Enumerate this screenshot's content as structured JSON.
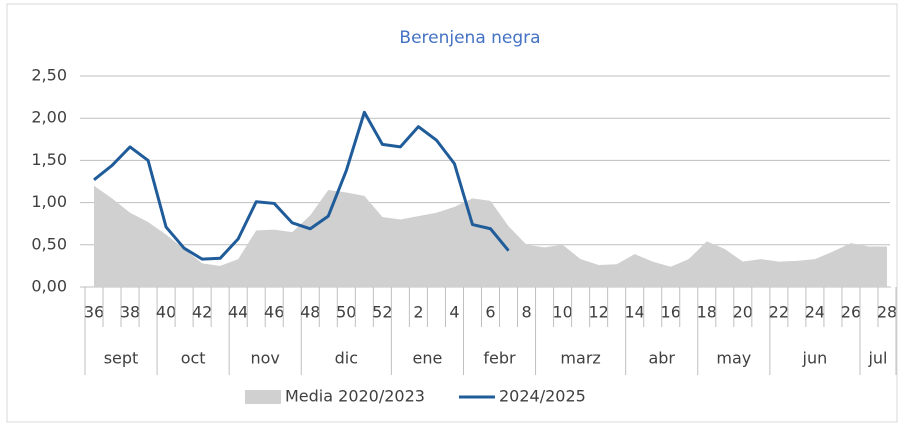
{
  "chart_data": {
    "type": "line",
    "title": "Berenjena negra",
    "categories": [
      "36",
      null,
      "38",
      null,
      "40",
      null,
      "42",
      null,
      "44",
      null,
      "46",
      null,
      "48",
      null,
      "50",
      null,
      "52",
      null,
      "2",
      null,
      "4",
      null,
      "6",
      null,
      "8",
      null,
      "10",
      null,
      "12",
      null,
      "14",
      null,
      "16",
      null,
      "18",
      null,
      "20",
      null,
      "22",
      null,
      "24",
      null,
      "26",
      null,
      "28"
    ],
    "months": [
      {
        "label": "sept",
        "span": 4
      },
      {
        "label": "oct",
        "span": 4
      },
      {
        "label": "nov",
        "span": 4
      },
      {
        "label": "dic",
        "span": 5
      },
      {
        "label": "ene",
        "span": 4
      },
      {
        "label": "febr",
        "span": 4
      },
      {
        "label": "marz",
        "span": 5
      },
      {
        "label": "abr",
        "span": 4
      },
      {
        "label": "may",
        "span": 4
      },
      {
        "label": "jun",
        "span": 5
      },
      {
        "label": "jul",
        "span": 2
      }
    ],
    "series": [
      {
        "name": "Media 2020/2023",
        "kind": "area",
        "color": "#d0d0d0",
        "values": [
          1.2,
          1.05,
          0.88,
          0.77,
          0.62,
          0.45,
          0.28,
          0.25,
          0.33,
          0.67,
          0.68,
          0.65,
          0.85,
          1.15,
          1.12,
          1.08,
          0.83,
          0.8,
          0.84,
          0.88,
          0.95,
          1.05,
          1.02,
          0.72,
          0.5,
          0.47,
          0.5,
          0.33,
          0.26,
          0.27,
          0.39,
          0.3,
          0.24,
          0.33,
          0.54,
          0.45,
          0.3,
          0.33,
          0.3,
          0.31,
          0.33,
          0.42,
          0.52,
          0.48,
          0.48
        ]
      },
      {
        "name": "2024/2025",
        "kind": "line",
        "color": "#1f5c99",
        "values": [
          1.27,
          1.44,
          1.66,
          1.5,
          0.71,
          0.46,
          0.33,
          0.34,
          0.57,
          1.01,
          0.99,
          0.76,
          0.69,
          0.84,
          1.38,
          2.07,
          1.69,
          1.66,
          1.9,
          1.74,
          1.46,
          0.74,
          0.69,
          0.43,
          null,
          null,
          null,
          null,
          null,
          null,
          null,
          null,
          null,
          null,
          null,
          null,
          null,
          null,
          null,
          null,
          null,
          null,
          null,
          null,
          null
        ]
      }
    ],
    "ylim": [
      0,
      2.5
    ],
    "yticks": [
      {
        "value": 0,
        "label": "0,00"
      },
      {
        "value": 0.5,
        "label": "0,50"
      },
      {
        "value": 1,
        "label": "1,00"
      },
      {
        "value": 1.5,
        "label": "1,50"
      },
      {
        "value": 2,
        "label": "2,00"
      },
      {
        "value": 2.5,
        "label": "2,50"
      }
    ],
    "grid": true,
    "legend": "bottom"
  }
}
